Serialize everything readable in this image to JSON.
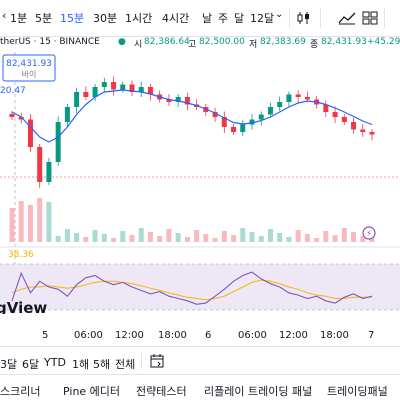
{
  "toolbar": {
    "timeframes": [
      {
        "label": "1분",
        "active": false
      },
      {
        "label": "5분",
        "active": false
      },
      {
        "label": "15분",
        "active": true
      },
      {
        "label": "30분",
        "active": false
      },
      {
        "label": "1시간",
        "active": false
      },
      {
        "label": "4시간",
        "active": false
      },
      {
        "label": "날",
        "active": false
      },
      {
        "label": "주",
        "active": false
      },
      {
        "label": "달",
        "active": false
      },
      {
        "label": "12달",
        "active": false
      }
    ],
    "icons": [
      "chevron-down-icon",
      "candlestick-icon",
      "chart-type-icon",
      "indicators-icon",
      "layout-icon"
    ]
  },
  "legend": {
    "symbol": "therUS · 15 · BINANCE",
    "open_label": "시",
    "open_value": "82,386.64",
    "high_label": "고",
    "high_value": "82,500.00",
    "low_label": "저",
    "low_value": "82,383.69",
    "close_label": "종",
    "close_value": "82,431.93",
    "change": "+45.29 (+0",
    "up_color": "#089981"
  },
  "price_tooltip": {
    "price": "82,431.93",
    "label": "바이",
    "sub_value": "20.47"
  },
  "rsi_label": "38.36",
  "watermark": "gView",
  "x_axis": [
    "5",
    "06:00",
    "12:00",
    "18:00",
    "6",
    "06:00",
    "12:00",
    "18:00",
    "7"
  ],
  "colors": {
    "up": "#089981",
    "down": "#f23645",
    "ma": "#2962ff",
    "rsi": "#7e57c2",
    "rsi_ma": "#f5b700",
    "rsi_band": "#ede7f6"
  },
  "range_bar": {
    "items": [
      "3달",
      "6달",
      "YTD",
      "1해",
      "5해",
      "전체"
    ],
    "calendar_icon": "calendar-icon"
  },
  "bottom_tabs": [
    "스크리너",
    "Pine 에디터",
    "전략테스터",
    "리플레이 트레이딩 패널",
    "트레이딩패널"
  ],
  "chart_data": {
    "type": "candlestick",
    "price_series": [
      82100,
      82050,
      81500,
      80800,
      81200,
      82000,
      82300,
      82600,
      82500,
      82700,
      82800,
      82650,
      82750,
      82600,
      82700,
      82550,
      82450,
      82400,
      82500,
      82350,
      82300,
      82200,
      82100,
      81900,
      81800,
      81950,
      82050,
      82150,
      82300,
      82400,
      82550,
      82500,
      82450,
      82350,
      82200,
      82100,
      82000,
      81850,
      81800,
      81750
    ],
    "ma_series": [
      82200,
      82100,
      81900,
      81700,
      81600,
      81700,
      81900,
      82150,
      82350,
      82500,
      82600,
      82620,
      82640,
      82620,
      82600,
      82560,
      82500,
      82450,
      82420,
      82380,
      82330,
      82260,
      82180,
      82080,
      81990,
      81960,
      81980,
      82030,
      82100,
      82200,
      82300,
      82380,
      82420,
      82400,
      82350,
      82280,
      82200,
      82110,
      82020,
      81950
    ],
    "rsi_series": [
      38,
      62,
      45,
      55,
      50,
      48,
      42,
      52,
      58,
      60,
      55,
      52,
      54,
      50,
      47,
      44,
      46,
      42,
      40,
      38,
      35,
      36,
      42,
      48,
      55,
      60,
      63,
      57,
      53,
      50,
      45,
      43,
      40,
      42,
      38,
      36,
      41,
      44,
      40,
      42
    ],
    "rsi_ma_series": [
      45,
      48,
      50,
      50,
      51,
      50,
      49,
      50,
      52,
      54,
      55,
      55,
      54,
      53,
      51,
      49,
      47,
      45,
      43,
      41,
      40,
      39,
      40,
      42,
      46,
      50,
      54,
      56,
      55,
      53,
      50,
      48,
      45,
      43,
      42,
      40,
      40,
      41,
      41,
      41
    ]
  }
}
